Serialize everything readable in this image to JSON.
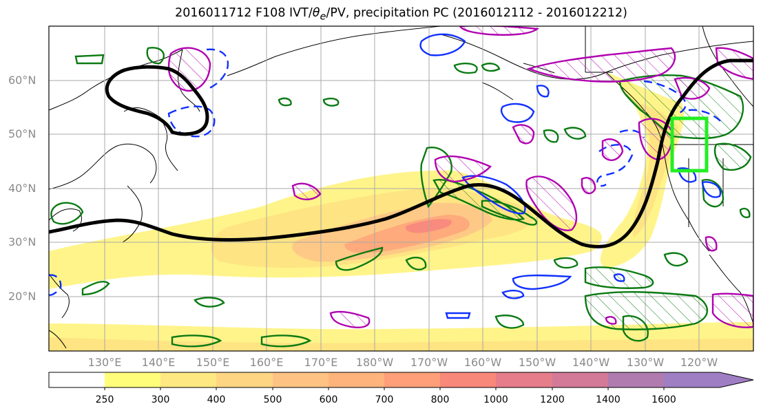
{
  "title": {
    "prefix": "2016011712 F108 IVT/",
    "theta": "θ",
    "theta_sub": "e",
    "suffix": "/PV, precipitation PC (2016012112 - 2016012212)"
  },
  "map": {
    "lat_labels": [
      "60°N",
      "50°N",
      "40°N",
      "30°N",
      "20°N"
    ],
    "lon_labels": [
      "130°E",
      "140°E",
      "150°E",
      "160°E",
      "170°E",
      "180°W",
      "170°W",
      "160°W",
      "150°W",
      "140°W",
      "130°W",
      "120°W"
    ],
    "fill_color_ivt": "#fff48a",
    "pv_contour_color": "#000000",
    "positive_pc_color": "#b000b0",
    "negative_pc_color": "#1030ff",
    "green_contour_color": "#0a7a12",
    "box_color": "#22ee22"
  },
  "colorbar": {
    "tick_labels": [
      "250",
      "300",
      "400",
      "500",
      "600",
      "700",
      "800",
      "1000",
      "1200",
      "1400",
      "1600"
    ],
    "colors": [
      "#ffffff",
      "#fffd7a",
      "#fee882",
      "#fed583",
      "#fec383",
      "#feb37c",
      "#fe9f79",
      "#f8887a",
      "#e57d8a",
      "#d37a98",
      "#b07cb0",
      "#a07ec4"
    ]
  }
}
